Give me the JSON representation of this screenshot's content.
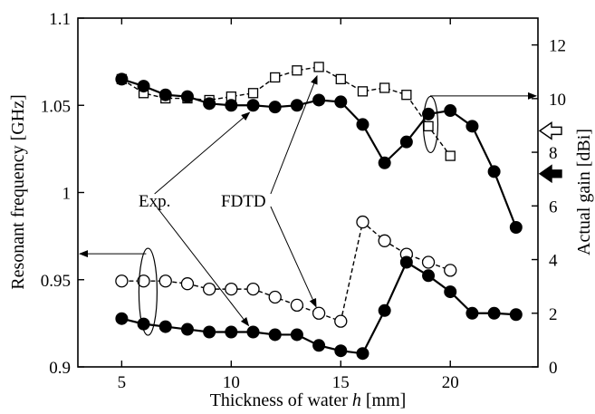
{
  "chart_data": {
    "type": "line",
    "xlabel_prefix": "Thickness of water ",
    "xlabel_var": "h",
    "xlabel_suffix": " [mm]",
    "ylabel_left": "Resonant frequency [GHz]",
    "ylabel_right": "Actual gain [dBi]",
    "xlim": [
      3,
      24
    ],
    "ylim_left": [
      0.9,
      1.1
    ],
    "ylim_right": [
      0,
      13
    ],
    "x_ticks": [
      5,
      10,
      15,
      20
    ],
    "y_left_ticks": [
      "0.9",
      "0.95",
      "1",
      "1.05",
      "1.1"
    ],
    "y_right_ticks": [
      "0",
      "2",
      "4",
      "6",
      "8",
      "10",
      "12"
    ],
    "annotations": {
      "exp": "Exp.",
      "fdtd": "FDTD"
    },
    "series": [
      {
        "axis": "left",
        "method": "FDTD",
        "marker": "open-square",
        "line": "dashed",
        "points": [
          [
            5,
            1.065
          ],
          [
            6,
            1.057
          ],
          [
            7,
            1.054
          ],
          [
            8,
            1.054
          ],
          [
            9,
            1.053
          ],
          [
            10,
            1.055
          ],
          [
            11,
            1.057
          ],
          [
            12,
            1.066
          ],
          [
            13,
            1.07
          ],
          [
            14,
            1.072
          ],
          [
            15,
            1.065
          ],
          [
            16,
            1.058
          ],
          [
            17,
            1.06
          ],
          [
            18,
            1.056
          ],
          [
            19,
            1.038
          ],
          [
            20,
            1.021
          ]
        ]
      },
      {
        "axis": "left",
        "method": "Exp.",
        "marker": "filled-circle",
        "line": "solid",
        "points": [
          [
            5,
            1.065
          ],
          [
            6,
            1.061
          ],
          [
            7,
            1.056
          ],
          [
            8,
            1.055
          ],
          [
            9,
            1.051
          ],
          [
            10,
            1.05
          ],
          [
            11,
            1.05
          ],
          [
            12,
            1.049
          ],
          [
            13,
            1.05
          ],
          [
            14,
            1.053
          ],
          [
            15,
            1.052
          ],
          [
            16,
            1.039
          ],
          [
            17,
            1.017
          ],
          [
            18,
            1.029
          ],
          [
            19,
            1.045
          ],
          [
            20,
            1.047
          ],
          [
            21,
            1.038
          ],
          [
            22,
            1.012
          ],
          [
            23,
            0.98
          ]
        ]
      },
      {
        "axis": "right",
        "method": "FDTD",
        "marker": "open-circle",
        "line": "dashed",
        "points": [
          [
            5,
            3.2
          ],
          [
            6,
            3.2
          ],
          [
            7,
            3.2
          ],
          [
            8,
            3.1
          ],
          [
            9,
            2.9
          ],
          [
            10,
            2.9
          ],
          [
            11,
            2.9
          ],
          [
            12,
            2.6
          ],
          [
            13,
            2.3
          ],
          [
            14,
            2.0
          ],
          [
            15,
            1.7
          ],
          [
            16,
            5.4
          ],
          [
            17,
            4.7
          ],
          [
            18,
            4.2
          ],
          [
            19,
            3.9
          ],
          [
            20,
            3.6
          ]
        ]
      },
      {
        "axis": "right",
        "method": "Exp.",
        "marker": "filled-circle",
        "line": "solid",
        "points": [
          [
            5,
            1.8
          ],
          [
            6,
            1.6
          ],
          [
            7,
            1.5
          ],
          [
            8,
            1.4
          ],
          [
            9,
            1.3
          ],
          [
            10,
            1.3
          ],
          [
            11,
            1.3
          ],
          [
            12,
            1.2
          ],
          [
            13,
            1.2
          ],
          [
            14,
            0.8
          ],
          [
            15,
            0.6
          ],
          [
            16,
            0.5
          ],
          [
            17,
            2.1
          ],
          [
            18,
            3.9
          ],
          [
            19,
            3.4
          ],
          [
            20,
            2.8
          ],
          [
            21,
            2.0
          ],
          [
            22,
            2.0
          ],
          [
            23,
            1.95
          ]
        ]
      }
    ]
  }
}
